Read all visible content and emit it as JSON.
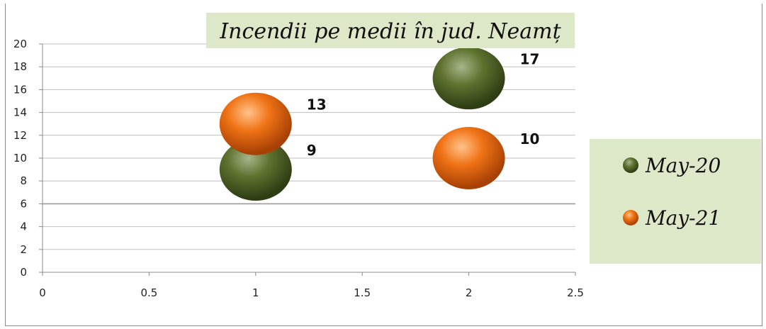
{
  "chart_data": {
    "type": "bubble",
    "title": "Incendii pe medii în jud. Neamț",
    "xlabel": "",
    "ylabel": "",
    "xlim": [
      0,
      2.5
    ],
    "ylim": [
      0,
      20
    ],
    "x_ticks": [
      "0",
      "0.5",
      "1",
      "1.5",
      "2",
      "2.5"
    ],
    "y_ticks": [
      "0",
      "2",
      "4",
      "6",
      "8",
      "10",
      "12",
      "14",
      "16",
      "18",
      "20"
    ],
    "grid": true,
    "legend_position": "right",
    "series": [
      {
        "name": "May-20",
        "color": "#5a6e2c",
        "points": [
          {
            "x": 1,
            "y": 9,
            "label": "9"
          },
          {
            "x": 2,
            "y": 17,
            "label": "17"
          }
        ]
      },
      {
        "name": "May-21",
        "color": "#e8650f",
        "points": [
          {
            "x": 1,
            "y": 13,
            "label": "13"
          },
          {
            "x": 2,
            "y": 10,
            "label": "10"
          }
        ]
      }
    ]
  },
  "colors": {
    "title_background": "#dde8c8",
    "legend_background": "#dde8c8",
    "gridline": "#bfbfbf",
    "axis": "#888888"
  }
}
